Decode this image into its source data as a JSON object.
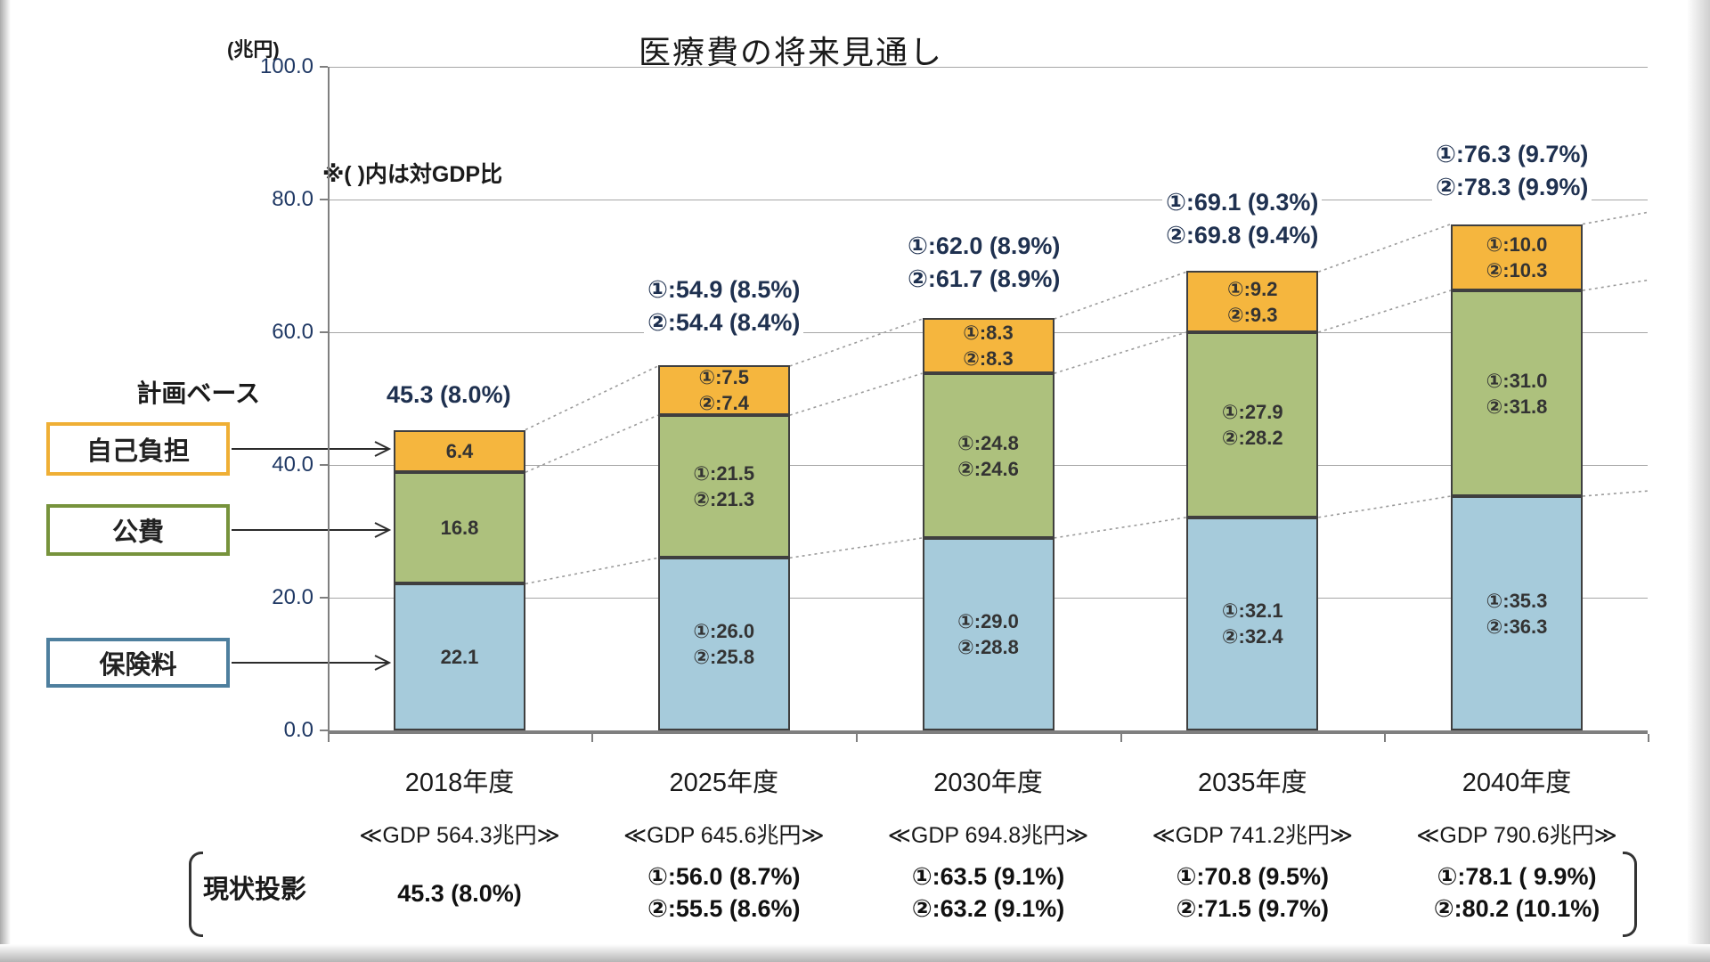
{
  "title": "医療費の将来見通し",
  "y_axis_unit": "(兆円)",
  "note": "※( )内は対GDP比",
  "plan_base_label": "計画ベース",
  "legend": [
    {
      "label": "自己負担",
      "border_color": "#EFAF35"
    },
    {
      "label": "公費",
      "border_color": "#77933C"
    },
    {
      "label": "保険料",
      "border_color": "#4E7F9E"
    }
  ],
  "chart_data": {
    "type": "bar",
    "stacked": true,
    "title": "医療費の将来見通し",
    "ylabel": "(兆円)",
    "ylim": [
      0,
      100
    ],
    "grid": true,
    "yticks": [
      {
        "label": "100.0",
        "value": 100
      },
      {
        "label": "80.0",
        "value": 80
      },
      {
        "label": "60.0",
        "value": 60
      },
      {
        "label": "40.0",
        "value": 40
      },
      {
        "label": "20.0",
        "value": 20
      },
      {
        "label": "0.0",
        "value": 0
      }
    ],
    "categories": [
      "2018年度",
      "2025年度",
      "2030年度",
      "2035年度",
      "2040年度"
    ],
    "gdp_labels": [
      "≪GDP 564.3兆円≫",
      "≪GDP 645.6兆円≫",
      "≪GDP 694.8兆円≫",
      "≪GDP 741.2兆円≫",
      "≪GDP 790.6兆円≫"
    ],
    "series": [
      {
        "name": "保険料",
        "color": "#A6CBDB",
        "values1": [
          22.1,
          26.0,
          29.0,
          32.1,
          35.3
        ],
        "values2": [
          null,
          25.8,
          28.8,
          32.4,
          36.3
        ],
        "bar_labels": [
          [
            "22.1"
          ],
          [
            "①:26.0",
            "②:25.8"
          ],
          [
            "①:29.0",
            "②:28.8"
          ],
          [
            "①:32.1",
            "②:32.4"
          ],
          [
            "①:35.3",
            "②:36.3"
          ]
        ]
      },
      {
        "name": "公費",
        "color": "#ADC17D",
        "values1": [
          16.8,
          21.5,
          24.8,
          27.9,
          31.0
        ],
        "values2": [
          null,
          21.3,
          24.6,
          28.2,
          31.8
        ],
        "bar_labels": [
          [
            "16.8"
          ],
          [
            "①:21.5",
            "②:21.3"
          ],
          [
            "①:24.8",
            "②:24.6"
          ],
          [
            "①:27.9",
            "②:28.2"
          ],
          [
            "①:31.0",
            "②:31.8"
          ]
        ]
      },
      {
        "name": "自己負担",
        "color": "#F5B63E",
        "values1": [
          6.4,
          7.5,
          8.3,
          9.2,
          10.0
        ],
        "values2": [
          null,
          7.4,
          8.3,
          9.3,
          10.3
        ],
        "bar_labels": [
          [
            "6.4"
          ],
          [
            "①:7.5",
            "②:7.4"
          ],
          [
            "①:8.3",
            "②:8.3"
          ],
          [
            "①:9.2",
            "②:9.3"
          ],
          [
            "①:10.0",
            "②:10.3"
          ]
        ]
      }
    ],
    "totals": {
      "values1": [
        45.3,
        54.9,
        62.0,
        69.1,
        76.3
      ],
      "values2": [
        null,
        54.4,
        61.7,
        69.8,
        78.3
      ],
      "labels": [
        [
          "45.3 (8.0%)"
        ],
        [
          "①:54.9 (8.5%)",
          "②:54.4 (8.4%)"
        ],
        [
          "①:62.0 (8.9%)",
          "②:61.7 (8.9%)"
        ],
        [
          "①:69.1 (9.3%)",
          "②:69.8 (9.4%)"
        ],
        [
          "①:76.3 (9.7%)",
          "②:78.3 (9.9%)"
        ]
      ]
    },
    "current_projection": {
      "label": "現状投影",
      "labels": [
        [
          "45.3 (8.0%)"
        ],
        [
          "①:56.0 (8.7%)",
          "②:55.5 (8.6%)"
        ],
        [
          "①:63.5 (9.1%)",
          "②:63.2 (9.1%)"
        ],
        [
          "①:70.8 (9.5%)",
          "②:71.5 (9.7%)"
        ],
        [
          "①:78.1 ( 9.9%)",
          "②:80.2 (10.1%)"
        ]
      ]
    }
  }
}
